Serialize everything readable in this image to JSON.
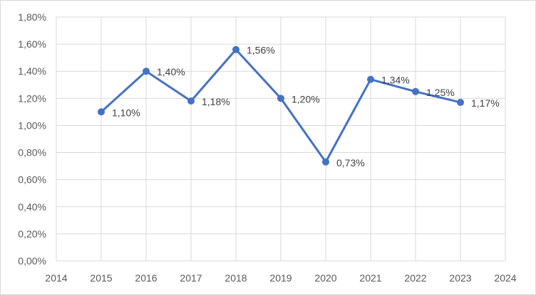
{
  "chart_data": {
    "type": "line",
    "x": [
      2015,
      2016,
      2017,
      2018,
      2019,
      2020,
      2021,
      2022,
      2023
    ],
    "series": [
      {
        "values": [
          1.1,
          1.4,
          1.18,
          1.56,
          1.2,
          0.73,
          1.34,
          1.25,
          1.17
        ],
        "labels": [
          "1,10%",
          "1,40%",
          "1,18%",
          "1,56%",
          "1,20%",
          "0,73%",
          "1,34%",
          "1,25%",
          "1,17%"
        ],
        "color": "#4472c4"
      }
    ],
    "xlim": [
      2014,
      2024
    ],
    "xticks": [
      2014,
      2015,
      2016,
      2017,
      2018,
      2019,
      2020,
      2021,
      2022,
      2023,
      2024
    ],
    "ylim": [
      0,
      1.8
    ],
    "yticks": [
      0,
      0.2,
      0.4,
      0.6,
      0.8,
      1.0,
      1.2,
      1.4,
      1.6,
      1.8
    ],
    "ytick_labels": [
      "0,00%",
      "0,20%",
      "0,40%",
      "0,60%",
      "0,80%",
      "1,00%",
      "1,20%",
      "1,40%",
      "1,60%",
      "1,80%"
    ],
    "grid": true,
    "gridlines": "vertical and horizontal",
    "legend": "none",
    "gridline_color": "#d9d9d9",
    "axis_label_color": "#595959"
  }
}
